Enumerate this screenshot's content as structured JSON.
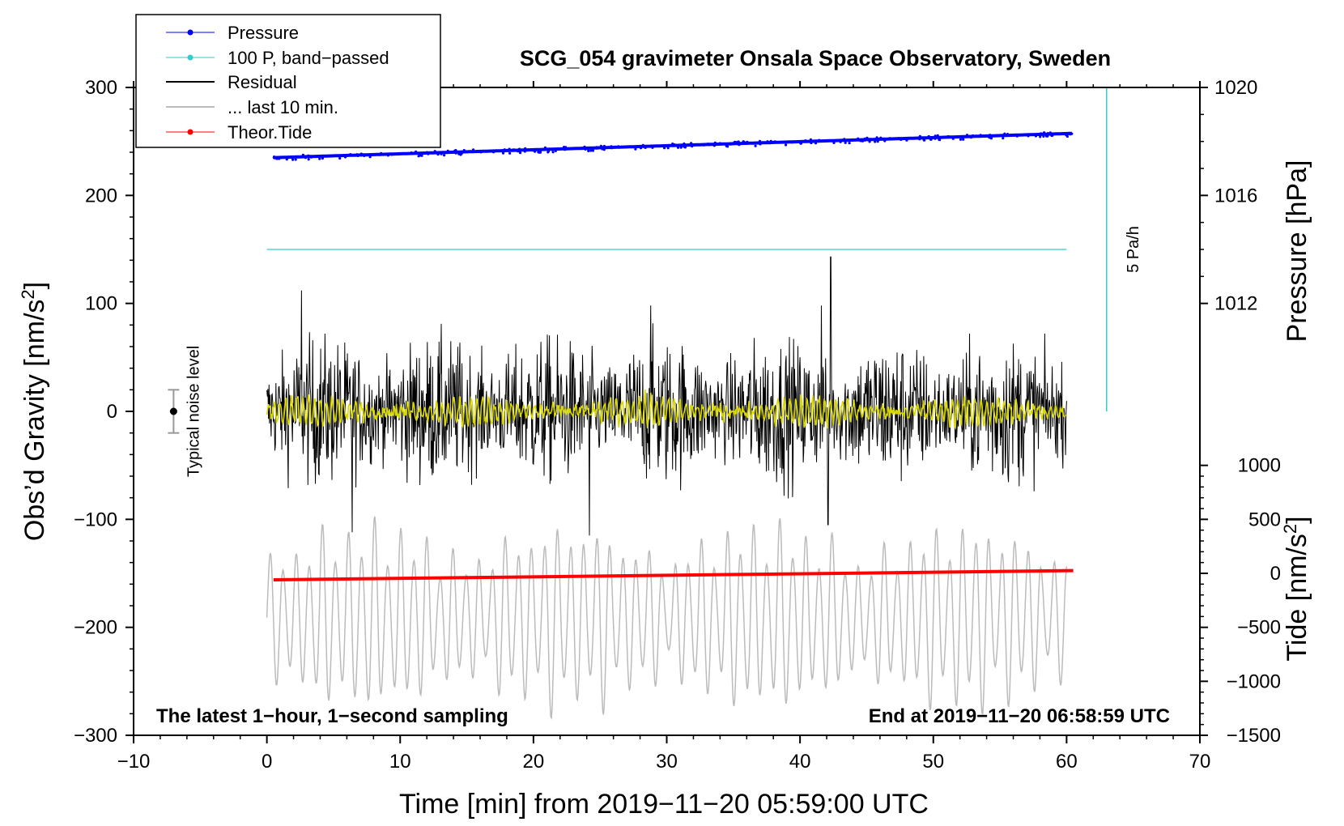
{
  "chart_data": {
    "type": "line",
    "title": "SCG_054 gravimeter Onsala Space Observatory, Sweden",
    "xlabel": "Time [min] from 2019−11−20 05:59:00 UTC",
    "ylabel_left": "Obs’d Gravity [nm/s",
    "ylabel_left_sup": "2",
    "ylabel_left_end": "]",
    "ylabel_right_pressure": "Pressure [hPa]",
    "ylabel_right_tide": "Tide [nm/s",
    "ylabel_right_tide_sup": "2",
    "ylabel_right_tide_end": "]",
    "xlim": [
      -10,
      70
    ],
    "ylim": [
      -300,
      300
    ],
    "x_ticks": [
      -10,
      0,
      10,
      20,
      30,
      40,
      50,
      60,
      70
    ],
    "x_tick_labels": [
      "−10",
      "0",
      "10",
      "20",
      "30",
      "40",
      "50",
      "60",
      "70"
    ],
    "y_ticks": [
      300,
      200,
      100,
      0,
      -100,
      -200,
      -300
    ],
    "y_tick_labels": [
      "300",
      "200",
      "100",
      "0",
      "−100",
      "−200",
      "−300"
    ],
    "pressure_axis": {
      "ticks": [
        1020,
        1016,
        1012
      ],
      "labels": [
        "1020",
        "1016",
        "1012"
      ],
      "value_per_nm": 0.04,
      "at_zero_nm": 1008.0
    },
    "tide_axis": {
      "ticks": [
        1000,
        500,
        0,
        -500,
        -1000,
        -1500
      ],
      "labels": [
        "1000",
        "500",
        "0",
        "−500",
        "−1000",
        "−1500"
      ],
      "value_per_nm": 10,
      "at_zero_nm": 1500
    },
    "legend": [
      {
        "label": "Pressure",
        "color": "#0000ff",
        "marker": true
      },
      {
        "label": "100 P, band−passed",
        "color": "#33cccc",
        "marker": true
      },
      {
        "label": "Residual",
        "color": "#000000",
        "marker": false
      },
      {
        "label": "... last 10 min.",
        "color": "#bbbbbb",
        "marker": false
      },
      {
        "label": "Theor.Tide",
        "color": "#ff0000",
        "marker": true
      }
    ],
    "series": [
      {
        "name": "Pressure",
        "color": "#0000ff",
        "unit": "hPa",
        "x_range": [
          0.5,
          60.5
        ],
        "values_approx": [
          1017.4,
          1018.3
        ]
      },
      {
        "name": "100 P, band−passed",
        "color": "#33cccc",
        "x_range": [
          0,
          60
        ],
        "value_nm": 150
      },
      {
        "name": "Residual",
        "color": "#000000",
        "x_range": [
          0,
          60
        ],
        "range_nm": [
          -115,
          143
        ],
        "center_nm": 0
      },
      {
        "name": "Smoothed residual",
        "color": "#d8d800",
        "x_range": [
          0,
          60
        ],
        "center_nm": 0,
        "amplitude_nm": 12
      },
      {
        "name": "... last 10 min.",
        "color": "#bbbbbb",
        "x_range": [
          0,
          60
        ],
        "range_nm": [
          -287,
          -95
        ]
      },
      {
        "name": "Theor.Tide",
        "color": "#ff0000",
        "unit": "nm/s2",
        "x_range": [
          0.5,
          60.5
        ],
        "values_approx": [
          -60,
          25
        ]
      }
    ],
    "vertical_marker": {
      "x": 63,
      "y_from_nm": 0,
      "y_to_nm": 300,
      "label": "5 Pa/h",
      "color": "#33cccc"
    },
    "noise_bar": {
      "x": -7,
      "center_nm": 0,
      "half_range_nm": 20,
      "label": "Typical noise level"
    },
    "annotations": {
      "bottom_left": "The latest 1−hour, 1−second sampling",
      "bottom_right": "End at 2019−11−20 06:58:59 UTC"
    }
  }
}
